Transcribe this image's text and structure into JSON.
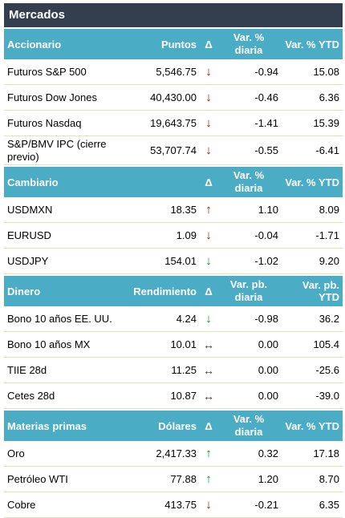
{
  "title": "Mercados",
  "sections": [
    {
      "header": {
        "name": "Accionario",
        "col2": "Puntos",
        "col3": "Δ",
        "col4": "Var. % diaria",
        "col5": "Var. % YTD"
      },
      "rows": [
        {
          "name": "Futuros S&P 500",
          "value": "5,546.75",
          "arrow": "↓",
          "arrow_color": "down-red",
          "var_d": "-0.94",
          "var_ytd": "15.08"
        },
        {
          "name": "Futuros Dow Jones",
          "value": "40,430.00",
          "arrow": "↓",
          "arrow_color": "down-red",
          "var_d": "-0.46",
          "var_ytd": "6.36"
        },
        {
          "name": "Futuros Nasdaq",
          "value": "19,643.75",
          "arrow": "↓",
          "arrow_color": "down-red",
          "var_d": "-1.41",
          "var_ytd": "15.39"
        },
        {
          "name": "S&P/BMV IPC (cierre previo)",
          "value": "53,707.74",
          "arrow": "↓",
          "arrow_color": "down-red",
          "var_d": "-0.55",
          "var_ytd": "-6.41"
        }
      ]
    },
    {
      "header": {
        "name": "Cambiario",
        "col2": "",
        "col3": "Δ",
        "col4": "Var. % diaria",
        "col5": "Var. % YTD"
      },
      "rows": [
        {
          "name": "USDMXN",
          "value": "18.35",
          "arrow": "↑",
          "arrow_color": "up-red",
          "var_d": "1.10",
          "var_ytd": "8.09"
        },
        {
          "name": "EURUSD",
          "value": "1.09",
          "arrow": "↓",
          "arrow_color": "down-red",
          "var_d": "-0.04",
          "var_ytd": "-1.71"
        },
        {
          "name": "USDJPY",
          "value": "154.01",
          "arrow": "↓",
          "arrow_color": "down-green",
          "var_d": "-1.02",
          "var_ytd": "9.20"
        }
      ]
    },
    {
      "header": {
        "name": "Dinero",
        "col2": "Rendimiento",
        "col3": "Δ",
        "col4": "Var. pb. diaria",
        "col5": "Var. pb. YTD"
      },
      "rows": [
        {
          "name": "Bono 10 años EE. UU.",
          "value": "4.24",
          "arrow": "↓",
          "arrow_color": "down-green",
          "var_d": "-0.98",
          "var_ytd": "36.2"
        },
        {
          "name": "Bono 10 años MX",
          "value": "10.01",
          "arrow": "↔",
          "arrow_color": "flat",
          "var_d": "0.00",
          "var_ytd": "105.4"
        },
        {
          "name": "TIIE 28d",
          "value": "11.25",
          "arrow": "↔",
          "arrow_color": "flat",
          "var_d": "0.00",
          "var_ytd": "-25.6"
        },
        {
          "name": "Cetes 28d",
          "value": "10.87",
          "arrow": "↔",
          "arrow_color": "flat",
          "var_d": "0.00",
          "var_ytd": "-39.0"
        }
      ]
    },
    {
      "header": {
        "name": "Materias primas",
        "col2": "Dólares",
        "col3": "Δ",
        "col4": "Var. % diaria",
        "col5": "Var. % YTD"
      },
      "rows": [
        {
          "name": "Oro",
          "value": "2,417.33",
          "arrow": "↑",
          "arrow_color": "up-green",
          "var_d": "0.32",
          "var_ytd": "17.18"
        },
        {
          "name": "Petróleo WTI",
          "value": "77.88",
          "arrow": "↑",
          "arrow_color": "up-green",
          "var_d": "1.20",
          "var_ytd": "8.70"
        },
        {
          "name": "Cobre",
          "value": "413.75",
          "arrow": "↓",
          "arrow_color": "down-red",
          "var_d": "-0.21",
          "var_ytd": "6.35"
        }
      ]
    }
  ]
}
